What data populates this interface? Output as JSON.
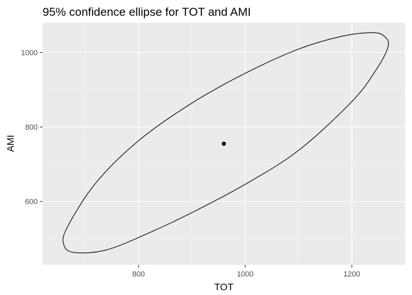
{
  "chart_data": {
    "type": "scatter",
    "title": "95% confidence ellipse for TOT and AMI",
    "xlabel": "TOT",
    "ylabel": "AMI",
    "xlim": [
      620,
      1300
    ],
    "ylim": [
      430,
      1080
    ],
    "x_ticks": [
      800,
      1000,
      1200
    ],
    "x_minor_ticks": [
      700,
      900,
      1100
    ],
    "y_ticks": [
      600,
      800,
      1000
    ],
    "y_minor_ticks": [
      500,
      700,
      900
    ],
    "grid": true,
    "colors": {
      "panel_background": "#ebebeb",
      "grid_major": "#ffffff",
      "grid_minor": "#f5f5f5",
      "ellipse_stroke": "#000000",
      "point_fill": "#000000"
    },
    "center_point": {
      "x": 960,
      "y": 755
    },
    "ellipse": [
      {
        "x": 1262,
        "y": 1042
      },
      {
        "x": 1240,
        "y": 1053
      },
      {
        "x": 1180,
        "y": 1043
      },
      {
        "x": 1100,
        "y": 1009
      },
      {
        "x": 1000,
        "y": 944
      },
      {
        "x": 900,
        "y": 864
      },
      {
        "x": 800,
        "y": 763
      },
      {
        "x": 720,
        "y": 650
      },
      {
        "x": 666,
        "y": 530
      },
      {
        "x": 660,
        "y": 483
      },
      {
        "x": 680,
        "y": 463
      },
      {
        "x": 740,
        "y": 470
      },
      {
        "x": 820,
        "y": 516
      },
      {
        "x": 900,
        "y": 570
      },
      {
        "x": 1000,
        "y": 646
      },
      {
        "x": 1100,
        "y": 737
      },
      {
        "x": 1200,
        "y": 868
      },
      {
        "x": 1245,
        "y": 952
      },
      {
        "x": 1268,
        "y": 1015
      }
    ]
  }
}
